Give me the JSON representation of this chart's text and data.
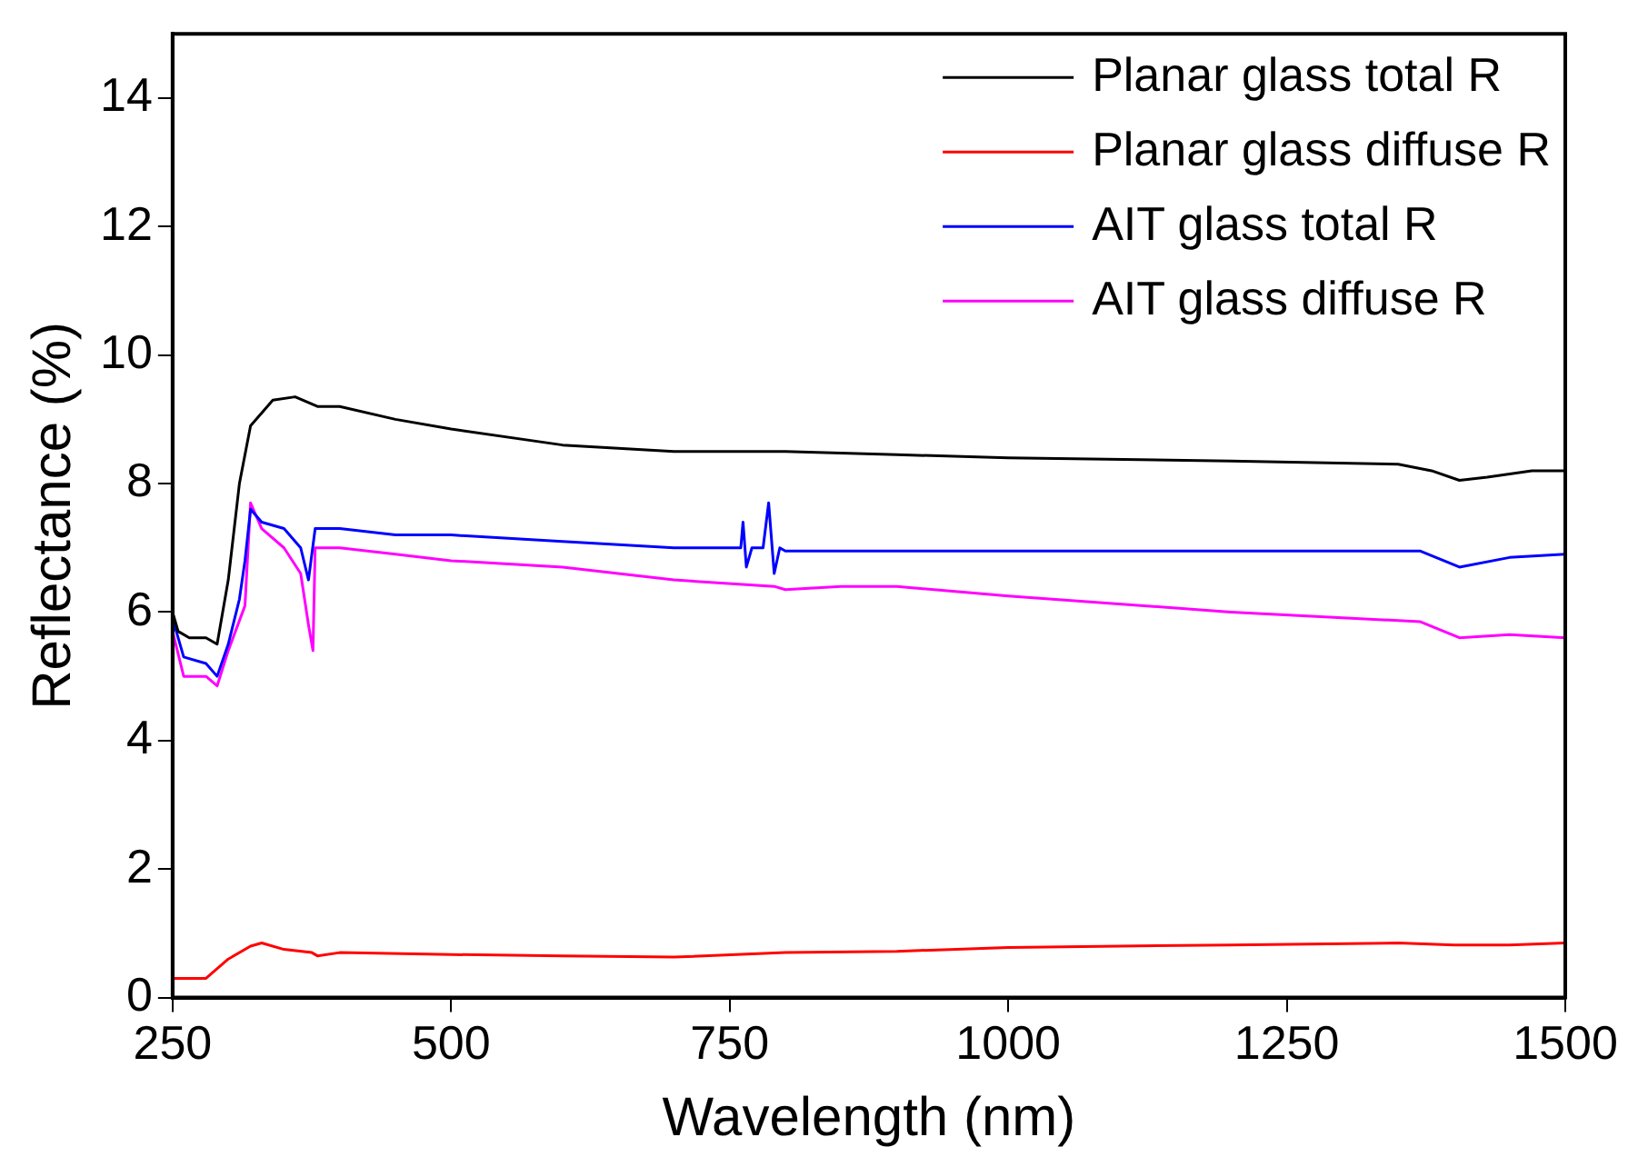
{
  "chart_data": {
    "type": "line",
    "xlabel": "Wavelength (nm)",
    "ylabel": "Reflectance (%)",
    "xlim": [
      250,
      1500
    ],
    "xticks": [
      250,
      500,
      750,
      1000,
      1250,
      1500
    ],
    "ylim": [
      0,
      15
    ],
    "yticks": [
      0,
      2,
      4,
      6,
      8,
      10,
      12,
      14
    ],
    "grid": false,
    "legend": "top right",
    "marker": "none",
    "line_style": "solid",
    "series": [
      {
        "name": "Planar glass total R",
        "color": "#000000",
        "x": [
          250,
          255,
          265,
          280,
          290,
          300,
          310,
          320,
          340,
          360,
          380,
          400,
          450,
          500,
          600,
          700,
          800,
          900,
          1000,
          1200,
          1350,
          1380,
          1405,
          1430,
          1470,
          1500
        ],
        "values": [
          6.0,
          5.7,
          5.6,
          5.6,
          5.5,
          6.5,
          8.0,
          8.9,
          9.3,
          9.35,
          9.2,
          9.2,
          9.0,
          8.85,
          8.6,
          8.5,
          8.5,
          8.45,
          8.4,
          8.35,
          8.3,
          8.2,
          8.05,
          8.1,
          8.2,
          8.2
        ]
      },
      {
        "name": "Planar glass diffuse R",
        "color": "#ff0000",
        "x": [
          250,
          280,
          300,
          320,
          330,
          350,
          375,
          380,
          400,
          500,
          600,
          700,
          800,
          900,
          1000,
          1200,
          1350,
          1400,
          1450,
          1500
        ],
        "values": [
          0.3,
          0.3,
          0.6,
          0.8,
          0.85,
          0.75,
          0.7,
          0.65,
          0.7,
          0.67,
          0.65,
          0.63,
          0.7,
          0.72,
          0.78,
          0.82,
          0.85,
          0.82,
          0.82,
          0.85
        ]
      },
      {
        "name": "AIT glass total R",
        "color": "#0000ff",
        "x": [
          250,
          260,
          280,
          290,
          300,
          310,
          315,
          320,
          330,
          350,
          365,
          372,
          378,
          400,
          450,
          500,
          600,
          700,
          760,
          762,
          765,
          770,
          780,
          785,
          790,
          795,
          800,
          900,
          1000,
          1200,
          1370,
          1405,
          1450,
          1500
        ],
        "values": [
          5.9,
          5.3,
          5.2,
          5.0,
          5.5,
          6.2,
          6.8,
          7.6,
          7.4,
          7.3,
          7.0,
          6.5,
          7.3,
          7.3,
          7.2,
          7.2,
          7.1,
          7.0,
          7.0,
          7.4,
          6.7,
          7.0,
          7.0,
          7.7,
          6.6,
          7.0,
          6.95,
          6.95,
          6.95,
          6.95,
          6.95,
          6.7,
          6.85,
          6.9
        ]
      },
      {
        "name": "AIT glass diffuse R",
        "color": "#ff00ff",
        "x": [
          250,
          260,
          280,
          290,
          300,
          315,
          320,
          330,
          350,
          365,
          372,
          376,
          378,
          400,
          450,
          500,
          600,
          700,
          790,
          800,
          850,
          900,
          1000,
          1200,
          1370,
          1405,
          1450,
          1500
        ],
        "values": [
          5.7,
          5.0,
          5.0,
          4.85,
          5.4,
          6.1,
          7.7,
          7.3,
          7.0,
          6.6,
          5.8,
          5.4,
          7.0,
          7.0,
          6.9,
          6.8,
          6.7,
          6.5,
          6.4,
          6.35,
          6.4,
          6.4,
          6.25,
          6.0,
          5.85,
          5.6,
          5.65,
          5.6
        ]
      }
    ]
  }
}
